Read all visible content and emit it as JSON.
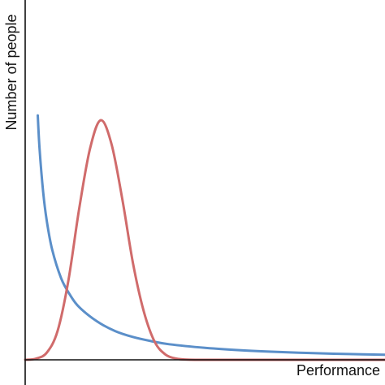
{
  "chart_data": {
    "type": "line",
    "title": "",
    "xlabel": "Performance",
    "ylabel": "Number of people",
    "xlim": [
      0,
      10
    ],
    "ylim": [
      0,
      1
    ],
    "grid": false,
    "legend": "none",
    "series": [
      {
        "color": "#5b8fc9",
        "x": [
          0.35,
          0.4,
          0.5,
          0.6,
          0.75,
          1.0,
          1.25,
          1.5,
          2.0,
          2.5,
          3.0,
          3.5,
          4.0,
          5.0,
          6.0,
          7.0,
          8.0,
          9.0,
          10.0
        ],
        "y": [
          1.02,
          0.88,
          0.7,
          0.58,
          0.46,
          0.34,
          0.27,
          0.22,
          0.16,
          0.12,
          0.095,
          0.078,
          0.065,
          0.05,
          0.04,
          0.033,
          0.028,
          0.024,
          0.021
        ]
      },
      {
        "color": "#d06b6b",
        "x": [
          0.0,
          0.3,
          0.6,
          0.9,
          1.2,
          1.5,
          1.8,
          2.1,
          2.4,
          2.7,
          3.0,
          3.3,
          3.6,
          3.9,
          4.2,
          4.5,
          5.0,
          6.0,
          7.0,
          8.0,
          9.0,
          10.0
        ],
        "y": [
          0.0,
          0.005,
          0.03,
          0.12,
          0.33,
          0.63,
          0.88,
          1.0,
          0.9,
          0.67,
          0.4,
          0.2,
          0.075,
          0.022,
          0.005,
          0.001,
          0.0,
          0.0,
          0.0,
          0.0,
          0.0,
          0.0
        ]
      }
    ]
  }
}
